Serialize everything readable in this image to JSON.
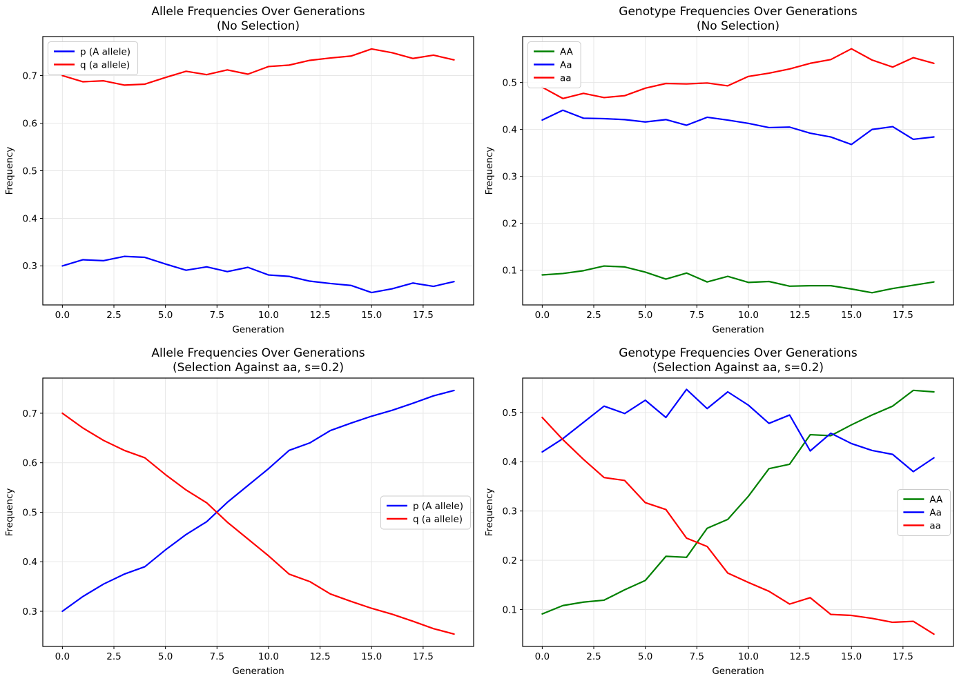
{
  "figure": {
    "background": "#ffffff",
    "text_color": "#000000",
    "grid_color": "#e7e7e7",
    "spine_color": "#000000",
    "legend_border_color": "#cccccc"
  },
  "chart_data": [
    {
      "type": "line",
      "title": "Allele Frequencies Over Generations",
      "subtitle": "(No Selection)",
      "xlabel": "Generation",
      "ylabel": "Frequency",
      "x": [
        0,
        1,
        2,
        3,
        4,
        5,
        6,
        7,
        8,
        9,
        10,
        11,
        12,
        13,
        14,
        15,
        16,
        17,
        18,
        19
      ],
      "xlim": [
        -0.95,
        19.95
      ],
      "ylim": [
        0.218,
        0.782
      ],
      "xticks": [
        0,
        2.5,
        5,
        7.5,
        10,
        12.5,
        15,
        17.5
      ],
      "xtick_labels": [
        "0.0",
        "2.5",
        "5.0",
        "7.5",
        "10.0",
        "12.5",
        "15.0",
        "17.5"
      ],
      "yticks": [
        0.3,
        0.4,
        0.5,
        0.6,
        0.7
      ],
      "ytick_labels": [
        "0.3",
        "0.4",
        "0.5",
        "0.6",
        "0.7"
      ],
      "grid": true,
      "legend_position": "upper-left",
      "series": [
        {
          "name": "p (A allele)",
          "color": "#0000ff",
          "values": [
            0.3,
            0.313,
            0.311,
            0.32,
            0.318,
            0.304,
            0.291,
            0.298,
            0.288,
            0.297,
            0.281,
            0.278,
            0.268,
            0.263,
            0.259,
            0.244,
            0.252,
            0.264,
            0.257,
            0.267
          ]
        },
        {
          "name": "q (a allele)",
          "color": "#ff0000",
          "values": [
            0.7,
            0.687,
            0.689,
            0.68,
            0.682,
            0.696,
            0.709,
            0.702,
            0.712,
            0.703,
            0.719,
            0.722,
            0.732,
            0.737,
            0.741,
            0.756,
            0.748,
            0.736,
            0.743,
            0.733
          ]
        }
      ]
    },
    {
      "type": "line",
      "title": "Genotype Frequencies Over Generations",
      "subtitle": "(No Selection)",
      "xlabel": "Generation",
      "ylabel": "Frequency",
      "x": [
        0,
        1,
        2,
        3,
        4,
        5,
        6,
        7,
        8,
        9,
        10,
        11,
        12,
        13,
        14,
        15,
        16,
        17,
        18,
        19
      ],
      "xlim": [
        -0.95,
        19.95
      ],
      "ylim": [
        0.026,
        0.598
      ],
      "xticks": [
        0,
        2.5,
        5,
        7.5,
        10,
        12.5,
        15,
        17.5
      ],
      "xtick_labels": [
        "0.0",
        "2.5",
        "5.0",
        "7.5",
        "10.0",
        "12.5",
        "15.0",
        "17.5"
      ],
      "yticks": [
        0.1,
        0.2,
        0.3,
        0.4,
        0.5
      ],
      "ytick_labels": [
        "0.1",
        "0.2",
        "0.3",
        "0.4",
        "0.5"
      ],
      "grid": true,
      "legend_position": "upper-left",
      "series": [
        {
          "name": "AA",
          "color": "#008000",
          "values": [
            0.09,
            0.093,
            0.099,
            0.109,
            0.107,
            0.096,
            0.081,
            0.094,
            0.075,
            0.087,
            0.074,
            0.076,
            0.066,
            0.067,
            0.067,
            0.06,
            0.052,
            0.061,
            0.068,
            0.075
          ]
        },
        {
          "name": "Aa",
          "color": "#0000ff",
          "values": [
            0.42,
            0.441,
            0.424,
            0.423,
            0.421,
            0.416,
            0.421,
            0.409,
            0.426,
            0.42,
            0.413,
            0.404,
            0.405,
            0.392,
            0.384,
            0.368,
            0.4,
            0.406,
            0.379,
            0.384
          ]
        },
        {
          "name": "aa",
          "color": "#ff0000",
          "values": [
            0.49,
            0.466,
            0.477,
            0.468,
            0.472,
            0.488,
            0.498,
            0.497,
            0.499,
            0.493,
            0.513,
            0.52,
            0.529,
            0.541,
            0.549,
            0.572,
            0.548,
            0.533,
            0.553,
            0.541
          ]
        }
      ]
    },
    {
      "type": "line",
      "title": "Allele Frequencies Over Generations",
      "subtitle": "(Selection Against aa, s=0.2)",
      "xlabel": "Generation",
      "ylabel": "Frequency",
      "x": [
        0,
        1,
        2,
        3,
        4,
        5,
        6,
        7,
        8,
        9,
        10,
        11,
        12,
        13,
        14,
        15,
        16,
        17,
        18,
        19
      ],
      "xlim": [
        -0.95,
        19.95
      ],
      "ylim": [
        0.229,
        0.771
      ],
      "xticks": [
        0,
        2.5,
        5,
        7.5,
        10,
        12.5,
        15,
        17.5
      ],
      "xtick_labels": [
        "0.0",
        "2.5",
        "5.0",
        "7.5",
        "10.0",
        "12.5",
        "15.0",
        "17.5"
      ],
      "yticks": [
        0.3,
        0.4,
        0.5,
        0.6,
        0.7
      ],
      "ytick_labels": [
        "0.3",
        "0.4",
        "0.5",
        "0.6",
        "0.7"
      ],
      "grid": true,
      "legend_position": "center-right",
      "series": [
        {
          "name": "p (A allele)",
          "color": "#0000ff",
          "values": [
            0.3,
            0.33,
            0.355,
            0.375,
            0.39,
            0.424,
            0.455,
            0.481,
            0.52,
            0.554,
            0.588,
            0.625,
            0.64,
            0.665,
            0.68,
            0.694,
            0.706,
            0.72,
            0.735,
            0.746
          ]
        },
        {
          "name": "q (a allele)",
          "color": "#ff0000",
          "values": [
            0.7,
            0.67,
            0.645,
            0.625,
            0.61,
            0.576,
            0.545,
            0.519,
            0.48,
            0.446,
            0.412,
            0.375,
            0.36,
            0.335,
            0.32,
            0.306,
            0.294,
            0.28,
            0.265,
            0.254
          ]
        }
      ]
    },
    {
      "type": "line",
      "title": "Genotype Frequencies Over Generations",
      "subtitle": "(Selection Against aa, s=0.2)",
      "xlabel": "Generation",
      "ylabel": "Frequency",
      "x": [
        0,
        1,
        2,
        3,
        4,
        5,
        6,
        7,
        8,
        9,
        10,
        11,
        12,
        13,
        14,
        15,
        16,
        17,
        18,
        19
      ],
      "xlim": [
        -0.95,
        19.95
      ],
      "ylim": [
        0.025,
        0.57
      ],
      "xticks": [
        0,
        2.5,
        5,
        7.5,
        10,
        12.5,
        15,
        17.5
      ],
      "xtick_labels": [
        "0.0",
        "2.5",
        "5.0",
        "7.5",
        "10.0",
        "12.5",
        "15.0",
        "17.5"
      ],
      "yticks": [
        0.1,
        0.2,
        0.3,
        0.4,
        0.5
      ],
      "ytick_labels": [
        "0.1",
        "0.2",
        "0.3",
        "0.4",
        "0.5"
      ],
      "grid": true,
      "legend_position": "center-right",
      "series": [
        {
          "name": "AA",
          "color": "#008000",
          "values": [
            0.091,
            0.108,
            0.115,
            0.119,
            0.14,
            0.159,
            0.208,
            0.206,
            0.265,
            0.283,
            0.33,
            0.386,
            0.395,
            0.455,
            0.453,
            0.475,
            0.495,
            0.513,
            0.545,
            0.542
          ]
        },
        {
          "name": "Aa",
          "color": "#0000ff",
          "values": [
            0.42,
            0.447,
            0.48,
            0.513,
            0.498,
            0.525,
            0.49,
            0.547,
            0.508,
            0.542,
            0.515,
            0.478,
            0.495,
            0.422,
            0.458,
            0.437,
            0.423,
            0.415,
            0.38,
            0.408
          ]
        },
        {
          "name": "aa",
          "color": "#ff0000",
          "values": [
            0.49,
            0.445,
            0.405,
            0.368,
            0.362,
            0.317,
            0.303,
            0.245,
            0.228,
            0.174,
            0.155,
            0.137,
            0.111,
            0.124,
            0.09,
            0.088,
            0.082,
            0.074,
            0.076,
            0.05
          ]
        }
      ]
    }
  ]
}
